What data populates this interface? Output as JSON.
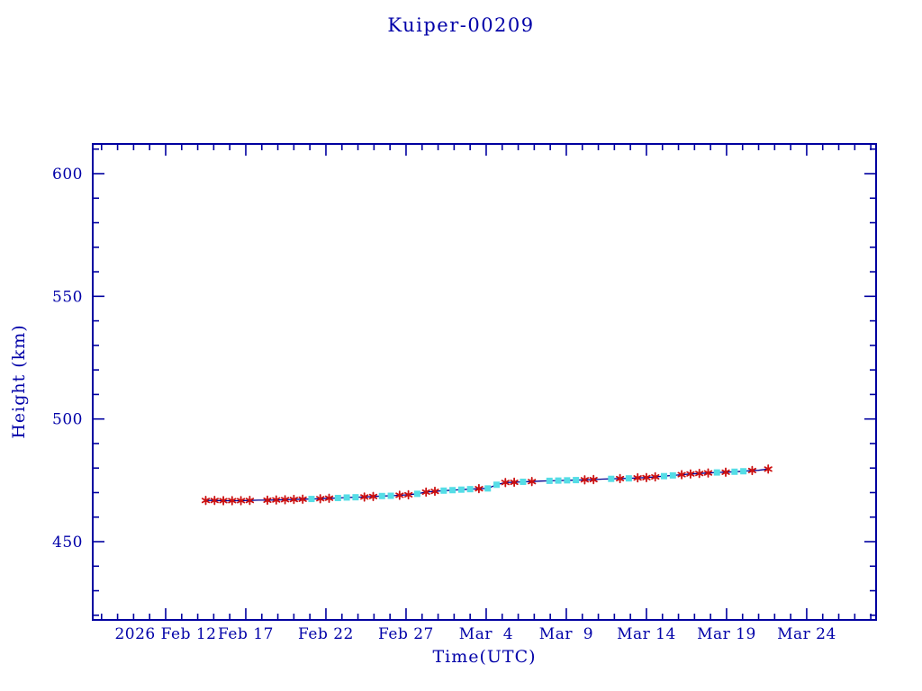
{
  "title": "Kuiper-00209",
  "chart_data": {
    "type": "line",
    "title": "Kuiper-00209",
    "xlabel": "Time(UTC)",
    "ylabel": "Height (km)",
    "x_unit_note": "day offset from 2026 Feb 12 (UTC), read from axis tick labels",
    "xlim_days": [
      -4.55,
      44.33
    ],
    "ylim": [
      418.1,
      612.1
    ],
    "y_major_ticks": [
      450,
      500,
      550,
      600
    ],
    "y_minor_tick_step": 10,
    "x_major_tick_step_days": 5,
    "x_minor_tick_step_days": 1,
    "x_major_ticks": [
      {
        "day": 0,
        "label": "2026 Feb 12"
      },
      {
        "day": 5,
        "label": "Feb 17"
      },
      {
        "day": 10,
        "label": "Feb 22"
      },
      {
        "day": 15,
        "label": "Feb 27"
      },
      {
        "day": 20,
        "label": "Mar  4"
      },
      {
        "day": 25,
        "label": "Mar  9"
      },
      {
        "day": 30,
        "label": "Mar 14"
      },
      {
        "day": 35,
        "label": "Mar 19"
      },
      {
        "day": 40,
        "label": "Mar 24"
      }
    ],
    "grid": false,
    "legend": null,
    "colors": {
      "axis": "#0000a0",
      "text": "#0000a8",
      "line": "#000090",
      "red_marker": "#cc1111",
      "cyan_marker": "#55dde6",
      "background": "#ffffff"
    },
    "marker_styles": {
      "red": "asterisk",
      "cyan": "filled-square",
      "none": "line-only"
    },
    "points": [
      {
        "d": 2.5,
        "h": 466.8,
        "m": "red"
      },
      {
        "d": 3.05,
        "h": 466.8,
        "m": "red"
      },
      {
        "d": 3.6,
        "h": 466.7,
        "m": "red"
      },
      {
        "d": 4.15,
        "h": 466.7,
        "m": "red"
      },
      {
        "d": 4.7,
        "h": 466.7,
        "m": "red"
      },
      {
        "d": 5.25,
        "h": 466.8,
        "m": "red"
      },
      {
        "d": 5.8,
        "h": 466.9,
        "m": "none"
      },
      {
        "d": 6.35,
        "h": 466.9,
        "m": "red"
      },
      {
        "d": 6.9,
        "h": 467.0,
        "m": "red"
      },
      {
        "d": 7.45,
        "h": 467.1,
        "m": "red"
      },
      {
        "d": 8.0,
        "h": 467.2,
        "m": "red"
      },
      {
        "d": 8.55,
        "h": 467.3,
        "m": "red"
      },
      {
        "d": 9.1,
        "h": 467.4,
        "m": "cyan"
      },
      {
        "d": 9.65,
        "h": 467.5,
        "m": "red"
      },
      {
        "d": 10.2,
        "h": 467.7,
        "m": "red"
      },
      {
        "d": 10.75,
        "h": 467.8,
        "m": "cyan"
      },
      {
        "d": 11.3,
        "h": 468.0,
        "m": "cyan"
      },
      {
        "d": 11.85,
        "h": 468.1,
        "m": "cyan"
      },
      {
        "d": 12.4,
        "h": 468.2,
        "m": "red"
      },
      {
        "d": 12.95,
        "h": 468.4,
        "m": "red"
      },
      {
        "d": 13.5,
        "h": 468.6,
        "m": "cyan"
      },
      {
        "d": 14.05,
        "h": 468.7,
        "m": "cyan"
      },
      {
        "d": 14.6,
        "h": 468.9,
        "m": "red"
      },
      {
        "d": 15.15,
        "h": 469.1,
        "m": "red"
      },
      {
        "d": 15.7,
        "h": 469.5,
        "m": "cyan"
      },
      {
        "d": 16.25,
        "h": 470.2,
        "m": "red"
      },
      {
        "d": 16.8,
        "h": 470.5,
        "m": "red"
      },
      {
        "d": 17.35,
        "h": 470.8,
        "m": "cyan"
      },
      {
        "d": 17.9,
        "h": 471.0,
        "m": "cyan"
      },
      {
        "d": 18.45,
        "h": 471.2,
        "m": "cyan"
      },
      {
        "d": 19.0,
        "h": 471.4,
        "m": "cyan"
      },
      {
        "d": 19.55,
        "h": 471.6,
        "m": "red"
      },
      {
        "d": 20.1,
        "h": 471.7,
        "m": "cyan"
      },
      {
        "d": 20.65,
        "h": 473.2,
        "m": "cyan"
      },
      {
        "d": 21.2,
        "h": 474.1,
        "m": "red"
      },
      {
        "d": 21.75,
        "h": 474.2,
        "m": "red"
      },
      {
        "d": 22.3,
        "h": 474.4,
        "m": "cyan"
      },
      {
        "d": 22.85,
        "h": 474.5,
        "m": "red"
      },
      {
        "d": 23.4,
        "h": 474.7,
        "m": "none"
      },
      {
        "d": 23.95,
        "h": 474.8,
        "m": "cyan"
      },
      {
        "d": 24.5,
        "h": 474.9,
        "m": "cyan"
      },
      {
        "d": 25.05,
        "h": 475.0,
        "m": "cyan"
      },
      {
        "d": 25.6,
        "h": 475.1,
        "m": "cyan"
      },
      {
        "d": 26.15,
        "h": 475.2,
        "m": "red"
      },
      {
        "d": 26.7,
        "h": 475.3,
        "m": "red"
      },
      {
        "d": 27.25,
        "h": 475.5,
        "m": "none"
      },
      {
        "d": 27.8,
        "h": 475.6,
        "m": "cyan"
      },
      {
        "d": 28.35,
        "h": 475.7,
        "m": "red"
      },
      {
        "d": 28.9,
        "h": 475.8,
        "m": "cyan"
      },
      {
        "d": 29.45,
        "h": 476.0,
        "m": "red"
      },
      {
        "d": 30.0,
        "h": 476.1,
        "m": "red"
      },
      {
        "d": 30.55,
        "h": 476.4,
        "m": "red"
      },
      {
        "d": 31.1,
        "h": 476.7,
        "m": "cyan"
      },
      {
        "d": 31.65,
        "h": 477.0,
        "m": "cyan"
      },
      {
        "d": 32.2,
        "h": 477.3,
        "m": "red"
      },
      {
        "d": 32.75,
        "h": 477.6,
        "m": "red"
      },
      {
        "d": 33.3,
        "h": 477.8,
        "m": "red"
      },
      {
        "d": 33.85,
        "h": 478.0,
        "m": "red"
      },
      {
        "d": 34.4,
        "h": 478.2,
        "m": "cyan"
      },
      {
        "d": 34.95,
        "h": 478.3,
        "m": "red"
      },
      {
        "d": 35.5,
        "h": 478.5,
        "m": "cyan"
      },
      {
        "d": 36.05,
        "h": 478.7,
        "m": "cyan"
      },
      {
        "d": 36.6,
        "h": 479.0,
        "m": "red"
      },
      {
        "d": 37.0,
        "h": 479.1,
        "m": "none"
      },
      {
        "d": 37.6,
        "h": 479.6,
        "m": "red"
      }
    ]
  }
}
